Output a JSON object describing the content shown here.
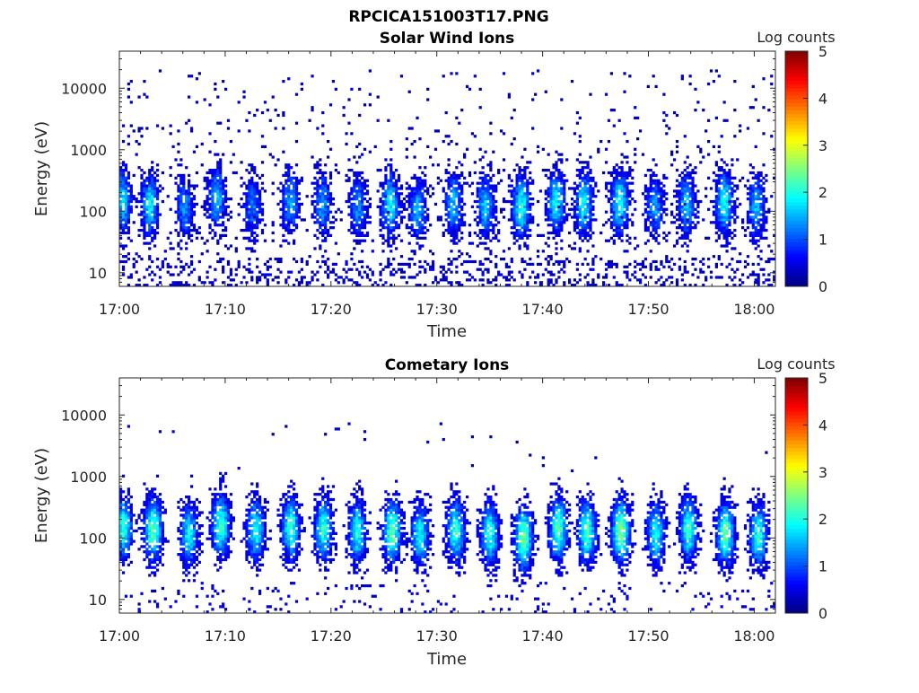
{
  "figure_title": "RPCICA151003T17.PNG",
  "chart_data": [
    {
      "type": "heatmap",
      "title": "Solar Wind Ions",
      "xlabel": "Time",
      "ylabel": "Energy (eV)",
      "x_ticks": [
        "17:00",
        "17:10",
        "17:20",
        "17:30",
        "17:40",
        "17:50",
        "18:00"
      ],
      "x_range_minutes": [
        0,
        62
      ],
      "y_scale": "log",
      "y_ticks": [
        "10",
        "100",
        "1000",
        "10000"
      ],
      "y_range": [
        6,
        40000
      ],
      "colorbar": {
        "label": "Log counts",
        "ticks": [
          "0",
          "1",
          "2",
          "3",
          "4",
          "5"
        ],
        "range": [
          0,
          5
        ],
        "colormap": "jet"
      },
      "peaks": [
        {
          "t": 0.3,
          "e": 150,
          "v": 1.7
        },
        {
          "t": 2.9,
          "e": 130,
          "v": 1.8
        },
        {
          "t": 6.2,
          "e": 110,
          "v": 1.3
        },
        {
          "t": 9.2,
          "e": 160,
          "v": 1.6
        },
        {
          "t": 12.6,
          "e": 120,
          "v": 1.2
        },
        {
          "t": 16.2,
          "e": 140,
          "v": 1.4
        },
        {
          "t": 19.2,
          "e": 130,
          "v": 1.4
        },
        {
          "t": 22.6,
          "e": 120,
          "v": 1.3
        },
        {
          "t": 25.6,
          "e": 130,
          "v": 1.9
        },
        {
          "t": 28.2,
          "e": 110,
          "v": 1.5
        },
        {
          "t": 31.6,
          "e": 130,
          "v": 1.6
        },
        {
          "t": 34.6,
          "e": 120,
          "v": 1.6
        },
        {
          "t": 38.0,
          "e": 120,
          "v": 2.0
        },
        {
          "t": 41.3,
          "e": 140,
          "v": 1.9
        },
        {
          "t": 43.9,
          "e": 130,
          "v": 1.9
        },
        {
          "t": 47.3,
          "e": 140,
          "v": 2.0
        },
        {
          "t": 50.6,
          "e": 120,
          "v": 1.4
        },
        {
          "t": 53.6,
          "e": 130,
          "v": 1.6
        },
        {
          "t": 57.2,
          "e": 140,
          "v": 1.9
        },
        {
          "t": 60.2,
          "e": 120,
          "v": 1.5
        }
      ],
      "background": "sparse low counts (log counts ~0-1) scattered from ~10 eV to ~20000 eV"
    },
    {
      "type": "heatmap",
      "title": "Cometary Ions",
      "xlabel": "Time",
      "ylabel": "Energy (eV)",
      "x_ticks": [
        "17:00",
        "17:10",
        "17:20",
        "17:30",
        "17:40",
        "17:50",
        "18:00"
      ],
      "x_range_minutes": [
        0,
        62
      ],
      "y_scale": "log",
      "y_ticks": [
        "10",
        "100",
        "1000",
        "10000"
      ],
      "y_range": [
        6,
        40000
      ],
      "colorbar": {
        "label": "Log counts",
        "ticks": [
          "0",
          "1",
          "2",
          "3",
          "4",
          "5"
        ],
        "range": [
          0,
          5
        ],
        "colormap": "jet"
      },
      "peaks": [
        {
          "t": 0.4,
          "e": 150,
          "v": 2.1
        },
        {
          "t": 3.2,
          "e": 140,
          "v": 2.4
        },
        {
          "t": 6.6,
          "e": 110,
          "v": 1.9
        },
        {
          "t": 9.6,
          "e": 160,
          "v": 2.2
        },
        {
          "t": 12.9,
          "e": 140,
          "v": 2.0
        },
        {
          "t": 16.2,
          "e": 150,
          "v": 2.2
        },
        {
          "t": 19.3,
          "e": 140,
          "v": 2.1
        },
        {
          "t": 22.5,
          "e": 130,
          "v": 2.0
        },
        {
          "t": 25.8,
          "e": 130,
          "v": 2.4
        },
        {
          "t": 28.4,
          "e": 110,
          "v": 1.9
        },
        {
          "t": 31.8,
          "e": 130,
          "v": 2.1
        },
        {
          "t": 35.0,
          "e": 120,
          "v": 2.1
        },
        {
          "t": 38.2,
          "e": 100,
          "v": 2.5
        },
        {
          "t": 41.5,
          "e": 140,
          "v": 2.3
        },
        {
          "t": 44.2,
          "e": 130,
          "v": 2.3
        },
        {
          "t": 47.4,
          "e": 130,
          "v": 2.6
        },
        {
          "t": 50.7,
          "e": 120,
          "v": 2.0
        },
        {
          "t": 53.8,
          "e": 140,
          "v": 2.2
        },
        {
          "t": 57.3,
          "e": 120,
          "v": 2.4
        },
        {
          "t": 60.4,
          "e": 110,
          "v": 2.1
        }
      ],
      "background": "very sparse isolated low counts above 1000 eV"
    }
  ]
}
